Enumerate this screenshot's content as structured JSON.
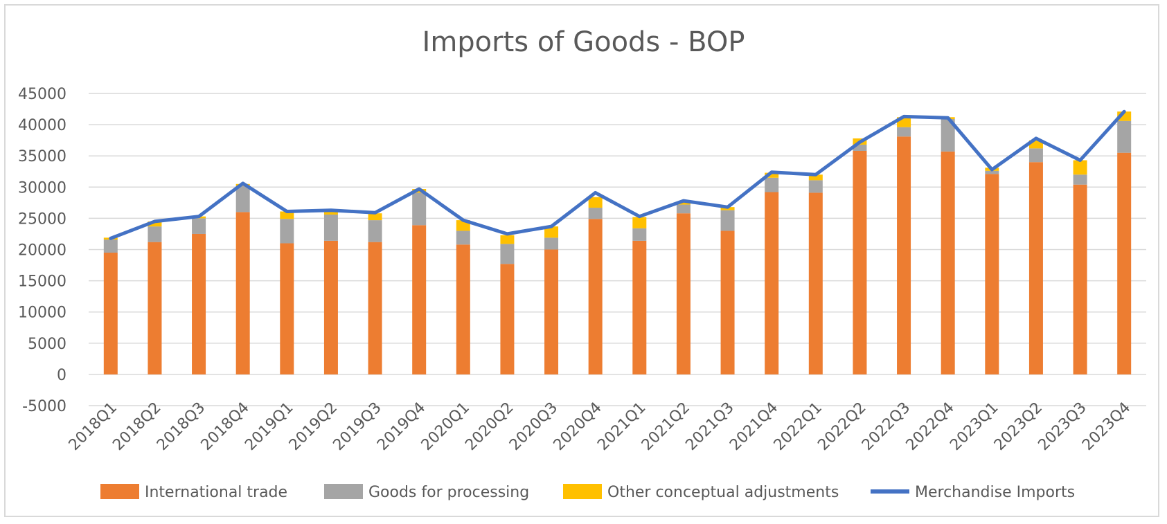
{
  "chart_data": {
    "type": "bar",
    "stacked": true,
    "title": "Imports of Goods - BOP",
    "xlabel": "",
    "ylabel": "",
    "ylim": [
      -5000,
      45000
    ],
    "yticks": [
      45000,
      40000,
      35000,
      30000,
      25000,
      20000,
      15000,
      10000,
      5000,
      0,
      -5000
    ],
    "grid": true,
    "legend_position": "bottom",
    "categories": [
      "2018Q1",
      "2018Q2",
      "2018Q3",
      "2018Q4",
      "2019Q1",
      "2019Q2",
      "2019Q3",
      "2019Q4",
      "2020Q1",
      "2020Q2",
      "2020Q3",
      "2020Q4",
      "2021Q1",
      "2021Q2",
      "2021Q3",
      "2021Q4",
      "2022Q1",
      "2022Q2",
      "2022Q3",
      "2022Q4",
      "2023Q1",
      "2023Q2",
      "2023Q3",
      "2023Q4"
    ],
    "series": [
      {
        "name": "International trade",
        "kind": "bar",
        "color": "#ed7d31",
        "values": [
          19500,
          21200,
          22500,
          26000,
          21000,
          21400,
          21200,
          23900,
          20800,
          17700,
          20000,
          24900,
          21400,
          25800,
          23000,
          29200,
          29100,
          35800,
          38100,
          35700,
          32100,
          34000,
          30400,
          35500
        ]
      },
      {
        "name": "Goods for processing",
        "kind": "bar",
        "color": "#a5a5a5",
        "values": [
          2100,
          2500,
          2500,
          4200,
          3900,
          4200,
          3500,
          5200,
          2200,
          3200,
          1900,
          1800,
          2000,
          1400,
          3300,
          2300,
          2000,
          1000,
          1500,
          5200,
          500,
          2200,
          1600,
          5100
        ]
      },
      {
        "name": "Other conceptual adjustments",
        "kind": "bar",
        "color": "#ffc000",
        "values": [
          300,
          800,
          300,
          300,
          1200,
          500,
          1100,
          600,
          1700,
          1400,
          1800,
          1700,
          1800,
          500,
          500,
          800,
          900,
          1000,
          1600,
          300,
          500,
          1300,
          2300,
          1500
        ]
      },
      {
        "name": "Merchandise Imports",
        "kind": "line",
        "color": "#4472c4",
        "values": [
          21800,
          24500,
          25300,
          30600,
          26100,
          26300,
          25900,
          29700,
          24700,
          22500,
          23700,
          29100,
          25300,
          27800,
          26800,
          32400,
          32000,
          37200,
          41300,
          41100,
          32800,
          37800,
          34300,
          42100
        ]
      }
    ]
  }
}
